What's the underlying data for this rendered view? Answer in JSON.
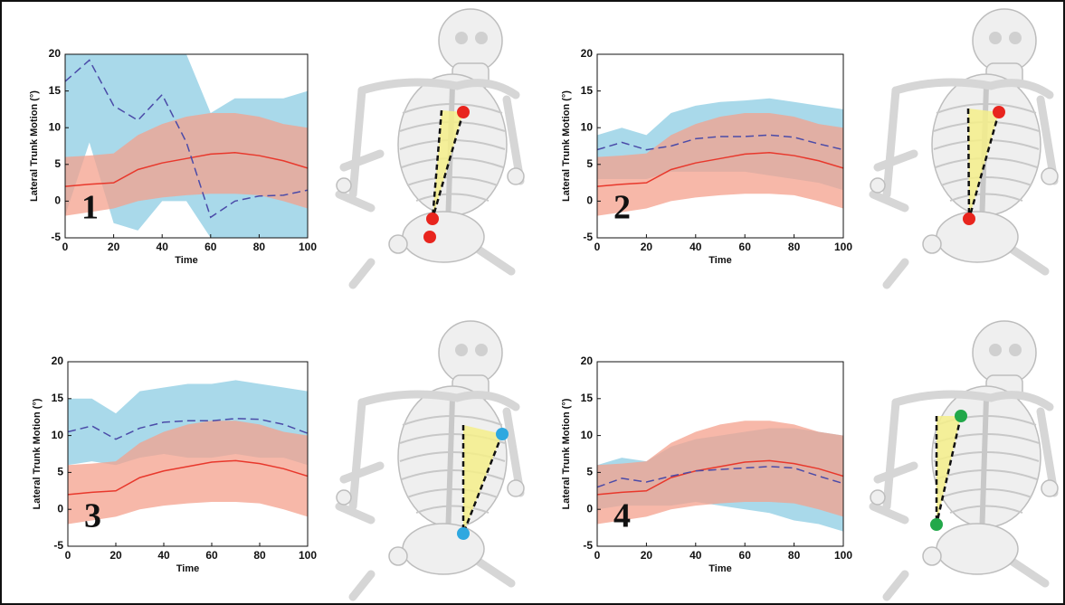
{
  "chart_data": [
    {
      "type": "line",
      "annotation": "1",
      "xlabel": "Time",
      "ylabel": "Lateral Trunk Motion (°)",
      "x": [
        0,
        10,
        20,
        30,
        40,
        50,
        60,
        70,
        80,
        90,
        100
      ],
      "xlim": [
        0,
        100
      ],
      "xticks": [
        0,
        20,
        40,
        60,
        80,
        100
      ],
      "ylim": [
        -5,
        20
      ],
      "yticks": [
        -5,
        0,
        5,
        10,
        15,
        20
      ],
      "series": [
        {
          "color": "#4b4ba8",
          "band_color": "#a9d9ea",
          "style": "dashed",
          "values": [
            16.3,
            19.2,
            13,
            11,
            14.5,
            8,
            -2.2,
            0,
            0.7,
            0.8,
            1.5
          ],
          "lower": [
            -2,
            8,
            -3,
            -4,
            0,
            0,
            -5,
            -5,
            -5,
            -5,
            -5
          ],
          "upper": [
            20,
            20,
            20,
            20,
            20,
            20,
            12,
            14,
            14,
            14,
            15
          ]
        },
        {
          "color": "#e8382c",
          "band_color": "#f4a08c",
          "style": "solid",
          "values": [
            2,
            2.3,
            2.5,
            4.3,
            5.2,
            5.8,
            6.4,
            6.6,
            6.2,
            5.5,
            4.5
          ],
          "lower": [
            -2,
            -1.5,
            -1,
            0,
            0.5,
            0.8,
            1,
            1,
            0.8,
            0,
            -1
          ],
          "upper": [
            6,
            6.2,
            6.5,
            9,
            10.5,
            11.5,
            12,
            12,
            11.5,
            10.5,
            10
          ]
        }
      ]
    },
    {
      "type": "line",
      "annotation": "2",
      "xlabel": "Time",
      "ylabel": "Lateral Trunk Motion (°)",
      "x": [
        0,
        10,
        20,
        30,
        40,
        50,
        60,
        70,
        80,
        90,
        100
      ],
      "xlim": [
        0,
        100
      ],
      "xticks": [
        0,
        20,
        40,
        60,
        80,
        100
      ],
      "ylim": [
        -5,
        20
      ],
      "yticks": [
        -5,
        0,
        5,
        10,
        15,
        20
      ],
      "series": [
        {
          "color": "#4b4ba8",
          "band_color": "#a9d9ea",
          "style": "dashed",
          "values": [
            7,
            8,
            7,
            7.5,
            8.5,
            8.8,
            8.8,
            9,
            8.7,
            7.8,
            7
          ],
          "lower": [
            3,
            3,
            3,
            4,
            4,
            4,
            4,
            3.5,
            3,
            2.5,
            1.5
          ],
          "upper": [
            9,
            10,
            9,
            12,
            13,
            13.5,
            13.7,
            14,
            13.5,
            13,
            12.5
          ]
        },
        {
          "color": "#e8382c",
          "band_color": "#f4a08c",
          "style": "solid",
          "values": [
            2,
            2.3,
            2.5,
            4.3,
            5.2,
            5.8,
            6.4,
            6.6,
            6.2,
            5.5,
            4.5
          ],
          "lower": [
            -2,
            -1.5,
            -1,
            0,
            0.5,
            0.8,
            1,
            1,
            0.8,
            0,
            -1
          ],
          "upper": [
            6,
            6.2,
            6.5,
            9,
            10.5,
            11.5,
            12,
            12,
            11.5,
            10.5,
            10
          ]
        }
      ]
    },
    {
      "type": "line",
      "annotation": "3",
      "xlabel": "Time",
      "ylabel": "Lateral Trunk Motion (°)",
      "x": [
        0,
        10,
        20,
        30,
        40,
        50,
        60,
        70,
        80,
        90,
        100
      ],
      "xlim": [
        0,
        100
      ],
      "xticks": [
        0,
        20,
        40,
        60,
        80,
        100
      ],
      "ylim": [
        -5,
        20
      ],
      "yticks": [
        -5,
        0,
        5,
        10,
        15,
        20
      ],
      "series": [
        {
          "color": "#4b4ba8",
          "band_color": "#a9d9ea",
          "style": "dashed",
          "values": [
            10.5,
            11.3,
            9.5,
            11,
            11.8,
            12,
            12,
            12.3,
            12.2,
            11.5,
            10.3
          ],
          "lower": [
            6,
            6.5,
            6,
            7,
            7.5,
            7,
            7,
            7.5,
            7,
            7,
            6
          ],
          "upper": [
            15,
            15,
            13,
            16,
            16.5,
            17,
            17,
            17.5,
            17,
            16.5,
            16
          ]
        },
        {
          "color": "#e8382c",
          "band_color": "#f4a08c",
          "style": "solid",
          "values": [
            2,
            2.3,
            2.5,
            4.3,
            5.2,
            5.8,
            6.4,
            6.6,
            6.2,
            5.5,
            4.5
          ],
          "lower": [
            -2,
            -1.5,
            -1,
            0,
            0.5,
            0.8,
            1,
            1,
            0.8,
            0,
            -1
          ],
          "upper": [
            6,
            6.2,
            6.5,
            9,
            10.5,
            11.5,
            12,
            12,
            11.5,
            10.5,
            10
          ]
        }
      ]
    },
    {
      "type": "line",
      "annotation": "4",
      "xlabel": "Time",
      "ylabel": "Lateral Trunk Motion (°)",
      "x": [
        0,
        10,
        20,
        30,
        40,
        50,
        60,
        70,
        80,
        90,
        100
      ],
      "xlim": [
        0,
        100
      ],
      "xticks": [
        0,
        20,
        40,
        60,
        80,
        100
      ],
      "ylim": [
        -5,
        20
      ],
      "yticks": [
        -5,
        0,
        5,
        10,
        15,
        20
      ],
      "series": [
        {
          "color": "#4b4ba8",
          "band_color": "#a9d9ea",
          "style": "dashed",
          "values": [
            3,
            4.2,
            3.7,
            4.5,
            5.2,
            5.4,
            5.6,
            5.8,
            5.6,
            4.5,
            3.5
          ],
          "lower": [
            0,
            0.5,
            0.5,
            0.5,
            1,
            0.5,
            0,
            -0.5,
            -1.5,
            -2,
            -3
          ],
          "upper": [
            6,
            7,
            6.5,
            8.5,
            9.5,
            10,
            10.5,
            11,
            11,
            10.5,
            10
          ]
        },
        {
          "color": "#e8382c",
          "band_color": "#f4a08c",
          "style": "solid",
          "values": [
            2,
            2.3,
            2.5,
            4.3,
            5.2,
            5.8,
            6.4,
            6.6,
            6.2,
            5.5,
            4.5
          ],
          "lower": [
            -2,
            -1.5,
            -1,
            0,
            0.5,
            0.8,
            1,
            1,
            0.8,
            0,
            -1
          ],
          "upper": [
            6,
            6.2,
            6.5,
            9,
            10.5,
            11.5,
            12,
            12,
            11.5,
            10.5,
            10
          ]
        }
      ]
    }
  ]
}
